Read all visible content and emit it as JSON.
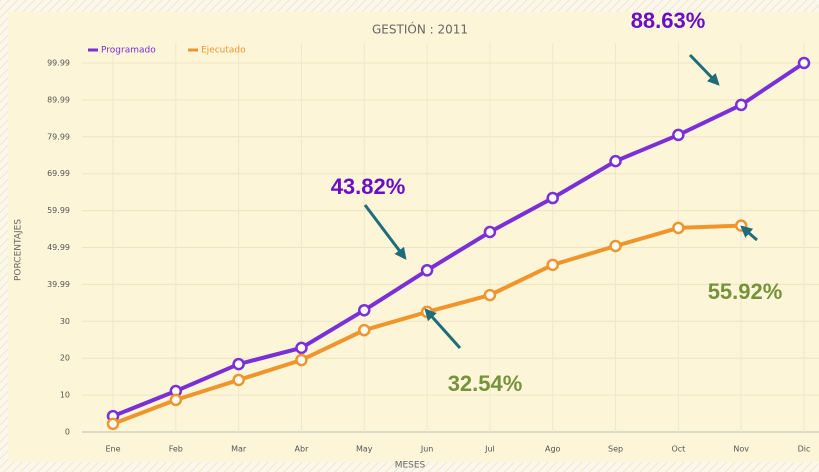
{
  "chart_data": {
    "type": "line",
    "title": "GESTIÓN : 2011",
    "x_label": "MESES",
    "y_label": "PORCENTAJES",
    "categories": [
      "Ene",
      "Feb",
      "Mar",
      "Abr",
      "May",
      "Jun",
      "Jul",
      "Ago",
      "Sep",
      "Oct",
      "Nov",
      "Dic"
    ],
    "series": [
      {
        "name": "Programado",
        "color": "#7b2fd6",
        "values": [
          4.3,
          11.1,
          18.4,
          22.8,
          33,
          43.82,
          54.2,
          63.4,
          73.4,
          80.5,
          88.63,
          99.99
        ]
      },
      {
        "name": "Ejecutado",
        "color": "#f0952b",
        "values": [
          2.2,
          8.7,
          14.1,
          19.5,
          27.6,
          32.54,
          37.1,
          45.3,
          50.4,
          55.3,
          55.92,
          null
        ]
      }
    ],
    "ylim": [
      0,
      99.99
    ],
    "yticks": [
      0,
      10,
      20,
      30,
      39.99,
      49.99,
      59.99,
      69.99,
      79.99,
      89.99,
      99.99
    ],
    "grid": true,
    "legend": "top-left",
    "annotations": [
      {
        "text": "88.63%",
        "color": "#6a0dc9"
      },
      {
        "text": "43.82%",
        "color": "#6a0dc9"
      },
      {
        "text": "55.92%",
        "color": "#76923c"
      },
      {
        "text": "32.54%",
        "color": "#76923c"
      }
    ]
  }
}
